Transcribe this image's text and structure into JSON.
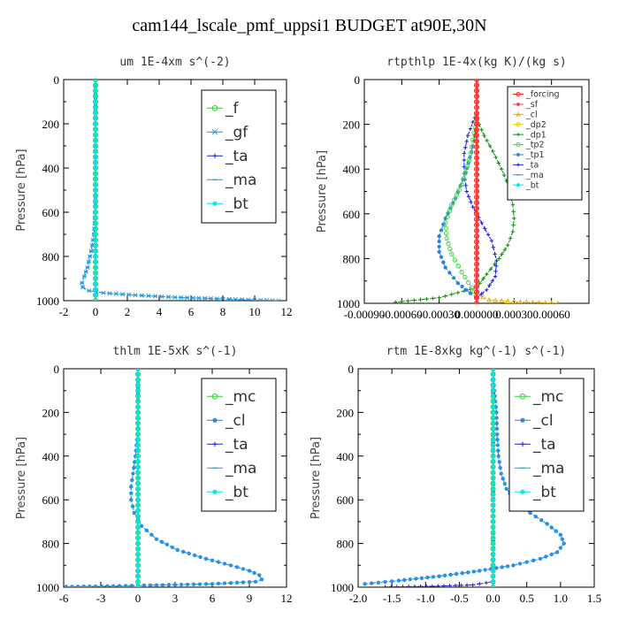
{
  "suptitle": "cam144_lscale_pmf_uppsi1  BUDGET at90E,30N",
  "colors": {
    "forcing": "#e8281e",
    "sf": "#ff3b3b",
    "cl": "#2a7ee8",
    "f": "#38c838",
    "gf": "#2a8ee0",
    "ta": "#1f1fd8",
    "ma": "#1aa0e8",
    "bt": "#00e5e5",
    "mc": "#3ad03a",
    "dp2": "#e8c800",
    "dp1": "#109010",
    "tp2": "#4ed84e",
    "tp1": "#2a80e0",
    "cl_yellow": "#f0b000"
  },
  "chart_data": [
    {
      "type": "line",
      "title": "um   1E-4xm s^(-2)",
      "xlabel": "",
      "ylabel": "Pressure [hPa]",
      "xlim": [
        -2,
        12
      ],
      "ylim": [
        1000,
        0
      ],
      "y_inverted": true,
      "xticks": [
        "-2",
        "0",
        "2",
        "4",
        "6",
        "8",
        "10",
        "12"
      ],
      "xtick_values": [
        -2,
        0,
        2,
        4,
        6,
        8,
        10,
        12
      ],
      "yticks": [
        "0",
        "200",
        "400",
        "600",
        "800",
        "1000"
      ],
      "ytick_values": [
        0,
        200,
        400,
        600,
        800,
        1000
      ],
      "legend": [
        "_f",
        "_gf",
        "_ta",
        "_ma",
        "_bt"
      ],
      "legend_keys": [
        "f",
        "gf",
        "ta",
        "ma",
        "bt"
      ],
      "legend_markers": [
        "o",
        "x",
        "+",
        "-",
        "*"
      ],
      "legend_position": "top-right",
      "series": [
        {
          "key": "gf",
          "marker": "x",
          "x": [
            0,
            0,
            0,
            0,
            0,
            0,
            -0.02,
            -0.05,
            -0.1,
            -0.2,
            -0.35,
            -0.5,
            -0.7,
            -0.85,
            -0.8,
            -0.4,
            0.5,
            2.5,
            5,
            8,
            10,
            11.5
          ],
          "y": [
            0,
            200,
            300,
            400,
            500,
            560,
            600,
            650,
            700,
            750,
            800,
            850,
            890,
            920,
            940,
            955,
            965,
            975,
            985,
            992,
            997,
            1000
          ]
        },
        {
          "key": "ma",
          "marker": "-",
          "x": [
            0,
            0,
            0,
            0,
            0,
            0,
            -0.02,
            -0.05,
            -0.1,
            -0.2,
            -0.35,
            -0.5,
            -0.7,
            -0.85,
            -0.8,
            -0.4,
            0.5,
            2.5,
            5,
            8,
            10,
            11.5
          ],
          "y": [
            0,
            200,
            300,
            400,
            500,
            560,
            600,
            650,
            700,
            750,
            800,
            850,
            890,
            920,
            940,
            955,
            965,
            975,
            985,
            992,
            997,
            1000
          ]
        },
        {
          "key": "f",
          "marker": "o",
          "x": [
            0,
            0
          ],
          "y": [
            0,
            1000
          ]
        },
        {
          "key": "bt",
          "marker": "*",
          "x": [
            0,
            0
          ],
          "y": [
            0,
            1000
          ]
        }
      ]
    },
    {
      "type": "line",
      "title": "rtpthlp   1E-4x(kg K)/(kg s)",
      "xlabel": "",
      "ylabel": "Pressure [hPa]",
      "xlim": [
        -0.0009,
        0.0009
      ],
      "ylim": [
        1000,
        0
      ],
      "y_inverted": true,
      "xticks": [
        "-0.00090",
        "-0.00060",
        "-0.00030",
        "0.000000",
        "0.00030",
        "0.00060"
      ],
      "xtick_values": [
        -0.0009,
        -0.0006,
        -0.0003,
        0,
        0.0003,
        0.0006
      ],
      "yticks": [
        "0",
        "200",
        "400",
        "600",
        "800",
        "1000"
      ],
      "ytick_values": [
        0,
        200,
        400,
        600,
        800,
        1000
      ],
      "legend": [
        "_forcing",
        "_sf",
        "_cl",
        "_dp2",
        "_dp1",
        "_tp2",
        "_tp1",
        "_ta",
        "_ma",
        "_bt"
      ],
      "legend_keys": [
        "forcing",
        "sf",
        "cl_yellow",
        "dp2",
        "dp1",
        "tp2",
        "tp1",
        "ta",
        "ma",
        "bt"
      ],
      "legend_markers": [
        "o",
        "*",
        "^",
        "o",
        "+",
        "o",
        "*",
        "+",
        "-",
        "*"
      ],
      "legend_position": "top-right",
      "series": [
        {
          "key": "dp1",
          "marker": "+",
          "x": [
            0,
            1e-05,
            2e-05,
            6e-05,
            0.00013,
            0.0002,
            0.00026,
            0.00029,
            0.0003,
            0.00029,
            0.00025,
            0.00018,
            8e-05,
            0,
            -0.0003,
            -0.00065
          ],
          "y": [
            150,
            170,
            200,
            250,
            320,
            400,
            480,
            560,
            620,
            680,
            740,
            800,
            870,
            930,
            975,
            995
          ]
        },
        {
          "key": "ta",
          "marker": "+",
          "x": [
            0,
            -3e-05,
            -7e-05,
            -0.0001,
            -0.0001,
            -8e-05,
            -3e-05,
            4e-05,
            0.00012,
            0.00016,
            0.00015,
            8e-05,
            0
          ],
          "y": [
            150,
            190,
            250,
            330,
            420,
            500,
            570,
            640,
            720,
            810,
            880,
            940,
            975
          ]
        },
        {
          "key": "tp1",
          "marker": "*",
          "x": [
            0,
            -3e-05,
            -9e-05,
            -0.00017,
            -0.00025,
            -0.0003,
            -0.0003,
            -0.00025,
            -0.00015,
            -5e-05,
            0
          ],
          "y": [
            200,
            300,
            420,
            530,
            620,
            700,
            770,
            840,
            910,
            955,
            975
          ]
        },
        {
          "key": "tp2",
          "marker": "o",
          "x": [
            0,
            -2e-05,
            -6e-05,
            -0.00012,
            -0.0002,
            -0.00025,
            -0.00024,
            -0.0002,
            -0.00012,
            -4e-05,
            0
          ],
          "y": [
            160,
            240,
            360,
            470,
            560,
            640,
            710,
            780,
            860,
            930,
            965
          ]
        },
        {
          "key": "cl_yellow",
          "marker": "^",
          "x": [
            0,
            0.0001,
            0.0003,
            0.0005,
            0.00065
          ],
          "y": [
            960,
            985,
            993,
            997,
            1000
          ]
        },
        {
          "key": "forcing",
          "marker": "o",
          "x": [
            0,
            0
          ],
          "y": [
            0,
            1000
          ]
        },
        {
          "key": "sf",
          "marker": "*",
          "x": [
            5e-06,
            5e-06
          ],
          "y": [
            0,
            1000
          ]
        }
      ]
    },
    {
      "type": "line",
      "title": "thlm   1E-5xK s^(-1)",
      "xlabel": "",
      "ylabel": "Pressure [hPa]",
      "xlim": [
        -6,
        12
      ],
      "ylim": [
        1000,
        0
      ],
      "y_inverted": true,
      "xticks": [
        "-6",
        "-3",
        "0",
        "3",
        "6",
        "9",
        "12"
      ],
      "xtick_values": [
        -6,
        -3,
        0,
        3,
        6,
        9,
        12
      ],
      "yticks": [
        "0",
        "200",
        "400",
        "600",
        "800",
        "1000"
      ],
      "ytick_values": [
        0,
        200,
        400,
        600,
        800,
        1000
      ],
      "legend": [
        "_mc",
        "_cl",
        "_ta",
        "_ma",
        "_bt"
      ],
      "legend_keys": [
        "mc",
        "cl",
        "ta",
        "ma",
        "bt"
      ],
      "legend_markers": [
        "o",
        "*",
        "+",
        "-",
        "*"
      ],
      "legend_position": "top-right",
      "series": [
        {
          "key": "cl",
          "marker": "*",
          "x": [
            0,
            0,
            -0.05,
            -0.2,
            -0.4,
            -0.55,
            -0.55,
            -0.3,
            0.3,
            1.5,
            3.2,
            5.5,
            7.5,
            9,
            9.8,
            10,
            9.5,
            6,
            2,
            -2,
            -5.8
          ],
          "y": [
            0,
            200,
            300,
            400,
            480,
            540,
            600,
            660,
            720,
            780,
            830,
            870,
            900,
            925,
            945,
            965,
            975,
            985,
            990,
            995,
            998
          ]
        },
        {
          "key": "ma",
          "marker": "-",
          "x": [
            0,
            0,
            -0.05,
            -0.2,
            -0.4,
            -0.55,
            -0.55,
            -0.3,
            0.3,
            1.5,
            3.2,
            5.5,
            7.5,
            9,
            9.8,
            10,
            9.5,
            6,
            2,
            -2,
            -5.8
          ],
          "y": [
            0,
            200,
            300,
            400,
            480,
            540,
            600,
            660,
            720,
            780,
            830,
            870,
            900,
            925,
            945,
            965,
            975,
            985,
            990,
            995,
            998
          ]
        },
        {
          "key": "mc",
          "marker": "o",
          "x": [
            0,
            0
          ],
          "y": [
            0,
            1000
          ]
        },
        {
          "key": "bt",
          "marker": "*",
          "x": [
            0,
            0
          ],
          "y": [
            0,
            1000
          ]
        }
      ]
    },
    {
      "type": "line",
      "title": "rtm   1E-8xkg kg^(-1) s^(-1)",
      "xlabel": "",
      "ylabel": "Pressure [hPa]",
      "xlim": [
        -2.0,
        1.5
      ],
      "ylim": [
        1000,
        0
      ],
      "y_inverted": true,
      "xticks": [
        "-2.0",
        "-1.5",
        "-1.0",
        "-0.5",
        "0.0",
        "0.5",
        "1.0",
        "1.5"
      ],
      "xtick_values": [
        -2.0,
        -1.5,
        -1.0,
        -0.5,
        0.0,
        0.5,
        1.0,
        1.5
      ],
      "yticks": [
        "0",
        "200",
        "400",
        "600",
        "800",
        "1000"
      ],
      "ytick_values": [
        0,
        200,
        400,
        600,
        800,
        1000
      ],
      "legend": [
        "_mc",
        "_cl",
        "_ta",
        "_ma",
        "_bt"
      ],
      "legend_keys": [
        "mc",
        "cl",
        "ta",
        "ma",
        "bt"
      ],
      "legend_markers": [
        "o",
        "*",
        "+",
        "-",
        "*"
      ],
      "legend_position": "top-right",
      "series": [
        {
          "key": "cl",
          "marker": "*",
          "x": [
            0,
            0.02,
            0.05,
            0.06,
            0.08,
            0.12,
            0.2,
            0.35,
            0.55,
            0.8,
            1.0,
            1.05,
            0.95,
            0.7,
            0.3,
            -0.2,
            -0.8,
            -1.4,
            -1.9
          ],
          "y": [
            0,
            100,
            200,
            300,
            400,
            480,
            550,
            610,
            660,
            710,
            760,
            800,
            840,
            870,
            900,
            925,
            950,
            970,
            985
          ]
        },
        {
          "key": "ma",
          "marker": "-",
          "x": [
            0,
            0.02,
            0.05,
            0.06,
            0.08,
            0.12,
            0.2,
            0.35,
            0.55,
            0.8,
            1.0,
            1.05,
            0.95,
            0.7,
            0.3,
            -0.2,
            -0.8,
            -1.4,
            -1.9
          ],
          "y": [
            0,
            100,
            200,
            300,
            400,
            480,
            550,
            610,
            660,
            710,
            760,
            800,
            840,
            870,
            900,
            925,
            950,
            970,
            985
          ]
        },
        {
          "key": "ta",
          "marker": "+",
          "x": [
            0,
            0,
            0,
            -0.3,
            -0.9,
            -1.6
          ],
          "y": [
            0,
            900,
            975,
            990,
            996,
            999
          ]
        },
        {
          "key": "mc",
          "marker": "o",
          "x": [
            0,
            0
          ],
          "y": [
            0,
            1000
          ]
        },
        {
          "key": "bt",
          "marker": "*",
          "x": [
            0,
            0
          ],
          "y": [
            0,
            1000
          ]
        }
      ]
    }
  ]
}
